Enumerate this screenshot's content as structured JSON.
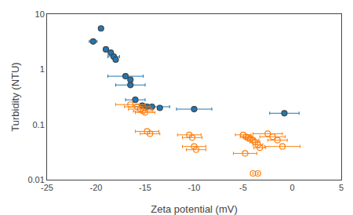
{
  "chart_data": {
    "type": "scatter",
    "xlabel": "Zeta potential (mV)",
    "ylabel": "Turbidity (NTU)",
    "xlim": [
      -25,
      5
    ],
    "ylim": [
      0.01,
      10
    ],
    "xticks": [
      -25,
      -20,
      -15,
      -10,
      -5,
      0,
      5
    ],
    "yticks": [
      0.01,
      0.1,
      1,
      10
    ],
    "log": "y",
    "grid": false,
    "series": [
      {
        "marker": "circle",
        "x": [
          -19.5,
          -20.3,
          -19.0,
          -18.5,
          -18.2,
          -18.0,
          -17.0,
          -16.5,
          -16.5,
          -16.0,
          -15.3,
          -14.8,
          -14.3,
          -13.5,
          -10.0,
          -0.8
        ],
        "values": [
          5.5,
          3.2,
          2.3,
          2.0,
          1.7,
          1.5,
          0.75,
          0.65,
          0.52,
          0.28,
          0.22,
          0.21,
          0.21,
          0.2,
          0.19,
          0.16
        ],
        "xerr": [
          0.0,
          0.4,
          0.0,
          0.0,
          0.6,
          0.0,
          1.8,
          0.0,
          1.5,
          1.0,
          0.0,
          0.0,
          1.8,
          0.0,
          1.8,
          1.5
        ]
      },
      {
        "marker": "circle-open",
        "x": [
          -16.5,
          -15.8,
          -15.5,
          -15.2,
          -15.0,
          -14.8,
          -14.5,
          -10.5,
          -10.2,
          -10.0,
          -9.8,
          -5.0,
          -4.7,
          -4.5,
          -4.3,
          -4.0,
          -3.8,
          -3.5,
          -3.3,
          -2.5,
          -2.0,
          -1.5,
          -1.0,
          -4.8,
          -4.0,
          -3.5
        ],
        "values": [
          0.23,
          0.21,
          0.19,
          0.175,
          0.165,
          0.075,
          0.068,
          0.065,
          0.058,
          0.04,
          0.035,
          0.065,
          0.06,
          0.058,
          0.055,
          0.052,
          0.048,
          0.043,
          0.038,
          0.068,
          0.06,
          0.052,
          0.04,
          0.03,
          0.013,
          0.013
        ],
        "xerr": [
          1.5,
          1.3,
          1.2,
          1.0,
          1.0,
          1.2,
          1.0,
          1.2,
          1.0,
          1.2,
          1.0,
          0.8,
          0.6,
          0.5,
          0.5,
          0.6,
          0.5,
          0.5,
          0.6,
          1.5,
          1.3,
          1.0,
          1.8,
          1.2,
          0.0,
          0.0
        ]
      }
    ]
  }
}
